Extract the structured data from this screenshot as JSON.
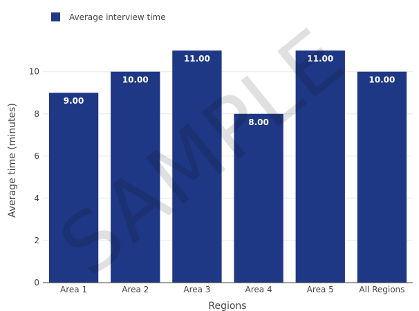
{
  "chart_data": {
    "type": "bar",
    "categories": [
      "Area 1",
      "Area 2",
      "Area 3",
      "Area 4",
      "Area 5",
      "All Regions"
    ],
    "series": [
      {
        "name": "Average interview time",
        "values": [
          9.0,
          10.0,
          11.0,
          8.0,
          11.0,
          10.0
        ],
        "value_labels": [
          "9.00",
          "10.00",
          "11.00",
          "8.00",
          "11.00",
          "10.00"
        ],
        "color": "#1f3885"
      }
    ],
    "xlabel": "Regions",
    "ylabel": "Average time (minutes)",
    "ylim": [
      0,
      11.3
    ],
    "yticks": [
      0,
      2,
      4,
      6,
      8,
      10
    ],
    "grid": true,
    "legend": "top-left"
  },
  "watermark": "SAMPLE"
}
